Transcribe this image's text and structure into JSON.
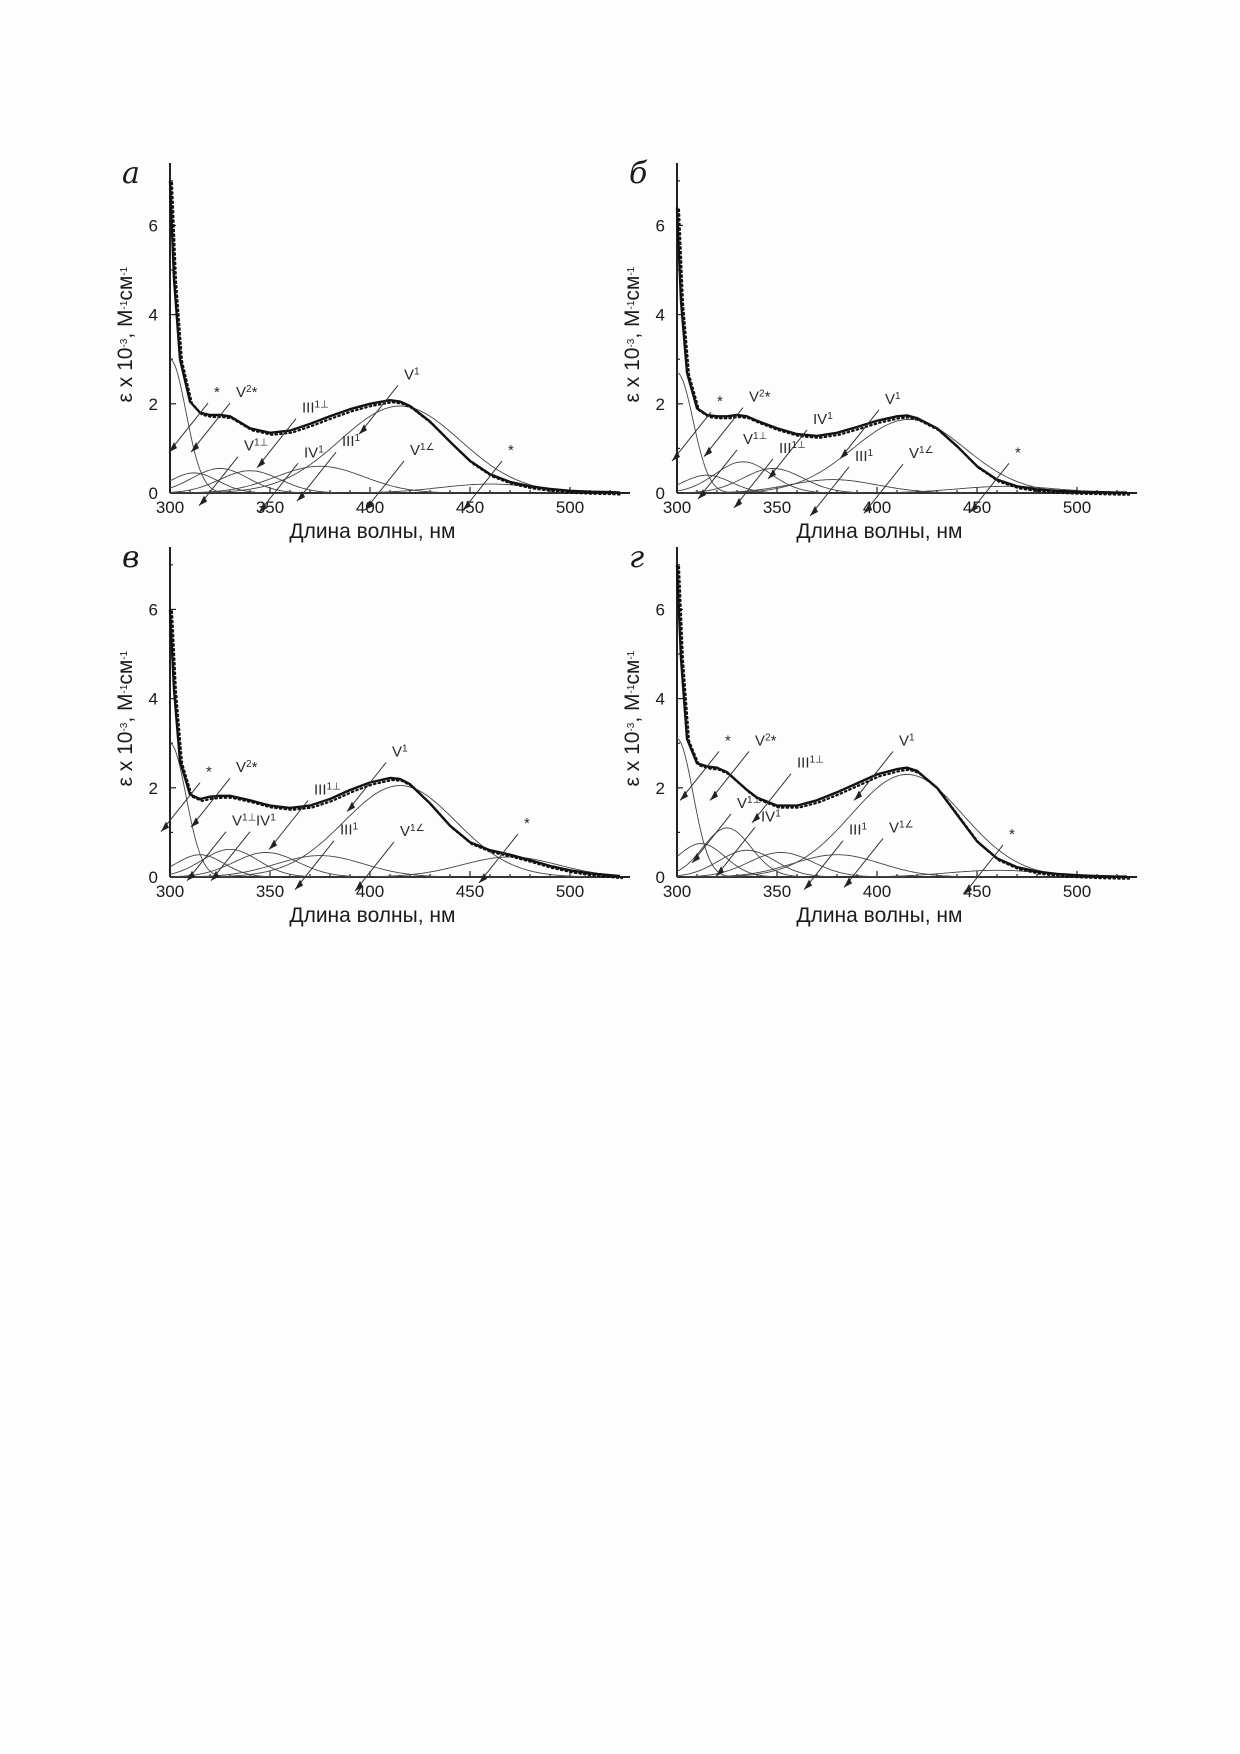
{
  "chart_data": [
    {
      "type": "line",
      "panel": "а",
      "xlabel": "Длина волны, нм",
      "ylabel": "ε x 10-3, М-1см-1",
      "xlim": [
        300,
        530
      ],
      "ylim": [
        0,
        7.4
      ],
      "xticks": [
        300,
        350,
        400,
        450,
        500
      ],
      "yticks": [
        0,
        2,
        4,
        6
      ],
      "envelope": {
        "x": [
          300,
          302,
          305,
          310,
          315,
          320,
          325,
          330,
          340,
          350,
          360,
          370,
          380,
          390,
          400,
          410,
          415,
          420,
          430,
          440,
          450,
          460,
          470,
          480,
          490,
          500,
          510,
          520,
          525
        ],
        "y": [
          7.0,
          4.8,
          3.0,
          2.05,
          1.8,
          1.75,
          1.75,
          1.72,
          1.45,
          1.35,
          1.4,
          1.55,
          1.72,
          1.88,
          2.0,
          2.08,
          2.05,
          1.95,
          1.6,
          1.15,
          0.72,
          0.42,
          0.25,
          0.15,
          0.09,
          0.05,
          0.03,
          0.02,
          0.01
        ]
      },
      "bands": [
        {
          "center": 300,
          "amp": 3.0,
          "width": 8
        },
        {
          "center": 312,
          "amp": 0.45,
          "width": 12
        },
        {
          "center": 325,
          "amp": 0.55,
          "width": 14
        },
        {
          "center": 340,
          "amp": 0.5,
          "width": 15
        },
        {
          "center": 375,
          "amp": 0.6,
          "width": 22
        },
        {
          "center": 415,
          "amp": 1.95,
          "width": 30
        },
        {
          "center": 460,
          "amp": 0.2,
          "width": 25
        }
      ],
      "labels": [
        {
          "text": "*",
          "x": 322,
          "y": 2.15
        },
        {
          "text": "V2*",
          "x": 333,
          "y": 2.15
        },
        {
          "text": "III1⊥",
          "x": 366,
          "y": 1.8
        },
        {
          "text": "V1⊥",
          "x": 337,
          "y": 0.95
        },
        {
          "text": "IV1",
          "x": 367,
          "y": 0.8
        },
        {
          "text": "III1",
          "x": 386,
          "y": 1.05
        },
        {
          "text": "V1",
          "x": 417,
          "y": 2.55
        },
        {
          "text": "V1∠",
          "x": 420,
          "y": 0.85
        },
        {
          "text": "*",
          "x": 469,
          "y": 0.85
        }
      ]
    },
    {
      "type": "line",
      "panel": "б",
      "xlabel": "Длина волны, нм",
      "ylabel": "ε x 10-3, М-1см-1",
      "xlim": [
        300,
        530
      ],
      "ylim": [
        0,
        7.4
      ],
      "xticks": [
        300,
        350,
        400,
        450,
        500
      ],
      "yticks": [
        0,
        2,
        4,
        6
      ],
      "envelope": {
        "x": [
          300,
          302,
          305,
          310,
          315,
          320,
          325,
          330,
          335,
          340,
          350,
          360,
          370,
          380,
          390,
          400,
          410,
          415,
          420,
          430,
          440,
          450,
          460,
          470,
          480,
          490,
          500,
          510,
          520,
          525
        ],
        "y": [
          6.4,
          4.3,
          2.7,
          1.9,
          1.75,
          1.72,
          1.72,
          1.75,
          1.72,
          1.62,
          1.45,
          1.32,
          1.28,
          1.35,
          1.48,
          1.62,
          1.72,
          1.74,
          1.68,
          1.45,
          1.05,
          0.6,
          0.3,
          0.15,
          0.08,
          0.05,
          0.03,
          0.02,
          0.01,
          0.01
        ]
      },
      "bands": [
        {
          "center": 300,
          "amp": 2.7,
          "width": 8
        },
        {
          "center": 315,
          "amp": 0.4,
          "width": 12
        },
        {
          "center": 333,
          "amp": 0.7,
          "width": 14
        },
        {
          "center": 348,
          "amp": 0.55,
          "width": 15
        },
        {
          "center": 378,
          "amp": 0.3,
          "width": 22
        },
        {
          "center": 416,
          "amp": 1.65,
          "width": 28
        },
        {
          "center": 465,
          "amp": 0.15,
          "width": 25
        }
      ],
      "labels": [
        {
          "text": "*",
          "x": 320,
          "y": 1.95
        },
        {
          "text": "V2*",
          "x": 336,
          "y": 2.05
        },
        {
          "text": "IV1",
          "x": 368,
          "y": 1.55
        },
        {
          "text": "V1⊥",
          "x": 333,
          "y": 1.1
        },
        {
          "text": "III1⊥",
          "x": 351,
          "y": 0.9
        },
        {
          "text": "V1",
          "x": 404,
          "y": 2.0
        },
        {
          "text": "III1",
          "x": 389,
          "y": 0.72
        },
        {
          "text": "V1∠",
          "x": 416,
          "y": 0.78
        },
        {
          "text": "*",
          "x": 469,
          "y": 0.8
        }
      ]
    },
    {
      "type": "line",
      "panel": "в",
      "xlabel": "Длина волны, нм",
      "ylabel": "ε x 10-3, М-1см-1",
      "xlim": [
        300,
        530
      ],
      "ylim": [
        0,
        7.4
      ],
      "xticks": [
        300,
        350,
        400,
        450,
        500
      ],
      "yticks": [
        0,
        2,
        4,
        6
      ],
      "envelope": {
        "x": [
          300,
          302,
          305,
          310,
          315,
          320,
          325,
          330,
          340,
          350,
          360,
          370,
          380,
          390,
          400,
          410,
          415,
          420,
          430,
          440,
          450,
          460,
          470,
          480,
          490,
          500,
          510,
          520,
          525
        ],
        "y": [
          6.0,
          4.2,
          2.6,
          1.85,
          1.75,
          1.8,
          1.82,
          1.82,
          1.72,
          1.6,
          1.55,
          1.6,
          1.75,
          1.95,
          2.12,
          2.22,
          2.2,
          2.08,
          1.65,
          1.15,
          0.78,
          0.6,
          0.5,
          0.38,
          0.25,
          0.15,
          0.08,
          0.04,
          0.02
        ]
      },
      "bands": [
        {
          "center": 300,
          "amp": 3.0,
          "width": 8
        },
        {
          "center": 315,
          "amp": 0.5,
          "width": 12
        },
        {
          "center": 330,
          "amp": 0.62,
          "width": 14
        },
        {
          "center": 348,
          "amp": 0.55,
          "width": 16
        },
        {
          "center": 375,
          "amp": 0.48,
          "width": 22
        },
        {
          "center": 415,
          "amp": 2.05,
          "width": 28
        },
        {
          "center": 470,
          "amp": 0.45,
          "width": 24
        }
      ],
      "labels": [
        {
          "text": "*",
          "x": 318,
          "y": 2.25
        },
        {
          "text": "V2*",
          "x": 333,
          "y": 2.35
        },
        {
          "text": "III1⊥",
          "x": 372,
          "y": 1.85
        },
        {
          "text": "V1⊥",
          "x": 331,
          "y": 1.15
        },
        {
          "text": "IV1",
          "x": 343,
          "y": 1.15
        },
        {
          "text": "III1",
          "x": 385,
          "y": 0.95
        },
        {
          "text": "V1",
          "x": 411,
          "y": 2.7
        },
        {
          "text": "V1∠",
          "x": 415,
          "y": 0.92
        },
        {
          "text": "*",
          "x": 477,
          "y": 1.1
        }
      ]
    },
    {
      "type": "line",
      "panel": "г",
      "xlabel": "Длина волны, нм",
      "ylabel": "ε x 10-3, М-1см-1",
      "xlim": [
        300,
        530
      ],
      "ylim": [
        0,
        7.4
      ],
      "xticks": [
        300,
        350,
        400,
        450,
        500
      ],
      "yticks": [
        0,
        2,
        4,
        6
      ],
      "envelope": {
        "x": [
          300,
          302,
          305,
          310,
          315,
          320,
          325,
          330,
          335,
          340,
          350,
          360,
          370,
          380,
          390,
          400,
          410,
          415,
          420,
          430,
          440,
          450,
          460,
          470,
          480,
          490,
          500,
          510,
          520,
          525
        ],
        "y": [
          7.0,
          4.9,
          3.1,
          2.55,
          2.48,
          2.45,
          2.35,
          2.15,
          1.95,
          1.78,
          1.6,
          1.6,
          1.72,
          1.9,
          2.1,
          2.3,
          2.42,
          2.45,
          2.38,
          2.0,
          1.4,
          0.8,
          0.42,
          0.22,
          0.12,
          0.07,
          0.04,
          0.02,
          0.01,
          0.01
        ]
      },
      "bands": [
        {
          "center": 300,
          "amp": 3.1,
          "width": 8
        },
        {
          "center": 312,
          "amp": 0.75,
          "width": 12
        },
        {
          "center": 325,
          "amp": 1.1,
          "width": 12
        },
        {
          "center": 335,
          "amp": 0.6,
          "width": 14
        },
        {
          "center": 352,
          "amp": 0.55,
          "width": 16
        },
        {
          "center": 380,
          "amp": 0.5,
          "width": 22
        },
        {
          "center": 415,
          "amp": 2.3,
          "width": 28
        },
        {
          "center": 460,
          "amp": 0.15,
          "width": 25
        }
      ],
      "labels": [
        {
          "text": "*",
          "x": 324,
          "y": 2.95
        },
        {
          "text": "V2*",
          "x": 339,
          "y": 2.95
        },
        {
          "text": "III1⊥",
          "x": 360,
          "y": 2.45
        },
        {
          "text": "V1⊥",
          "x": 330,
          "y": 1.55
        },
        {
          "text": "IV1",
          "x": 342,
          "y": 1.25
        },
        {
          "text": "III1",
          "x": 386,
          "y": 0.95
        },
        {
          "text": "V1",
          "x": 411,
          "y": 2.95
        },
        {
          "text": "V1∠",
          "x": 406,
          "y": 1.0
        },
        {
          "text": "*",
          "x": 466,
          "y": 0.85
        }
      ]
    }
  ]
}
